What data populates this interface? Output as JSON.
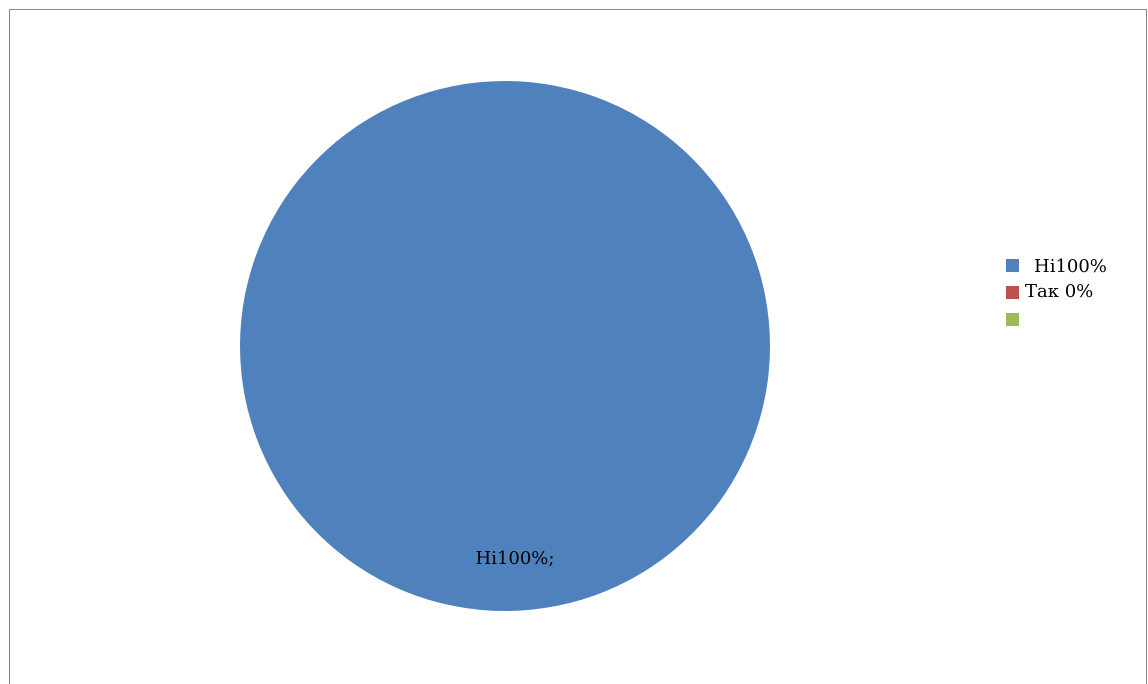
{
  "chart_data": {
    "type": "pie",
    "title": "",
    "categories": [
      "Ні100%",
      "Так 0%",
      ""
    ],
    "values": [
      100,
      0,
      0
    ],
    "colors": [
      "#4F81BD",
      "#C0504D",
      "#9BBB59"
    ],
    "data_labels": [
      "Ні100%;",
      "",
      ""
    ],
    "legend": {
      "placement": "right",
      "entries": [
        "Ні100%",
        "Так 0%",
        ""
      ]
    }
  }
}
